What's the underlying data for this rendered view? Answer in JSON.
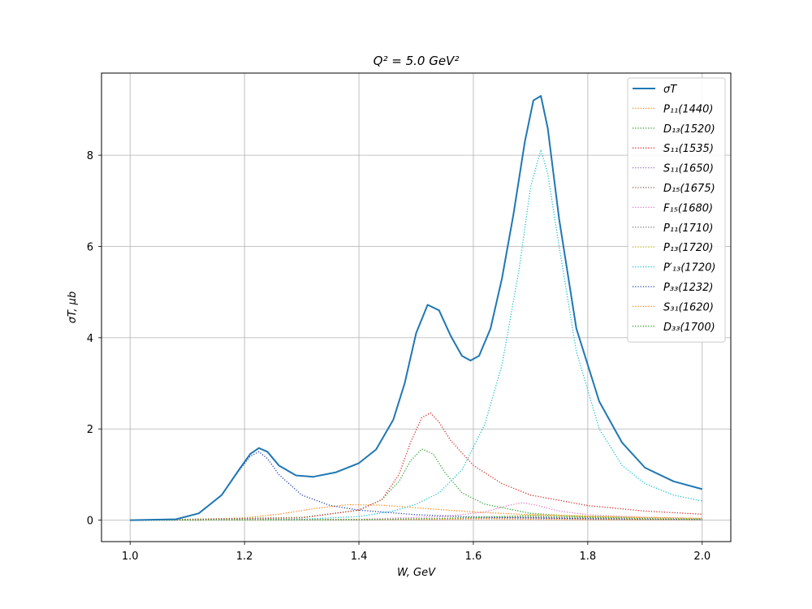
{
  "chart_data": {
    "type": "line",
    "title": "Q² = 5.0 GeV²",
    "xlabel": "W, GeV",
    "ylabel": "σT, μb",
    "xlim": [
      0.95,
      2.05
    ],
    "ylim": [
      -0.47,
      9.8
    ],
    "grid": true,
    "legend_position": "top-right",
    "x_ticks": [
      "1.0",
      "1.2",
      "1.4",
      "1.6",
      "1.8",
      "2.0"
    ],
    "y_ticks": [
      "0",
      "2",
      "4",
      "6",
      "8"
    ],
    "series": [
      {
        "name": "σT",
        "color": "#1f77b4",
        "style": "solid",
        "x": [
          1.0,
          1.08,
          1.12,
          1.16,
          1.19,
          1.21,
          1.225,
          1.24,
          1.26,
          1.29,
          1.32,
          1.36,
          1.4,
          1.43,
          1.46,
          1.48,
          1.5,
          1.52,
          1.54,
          1.56,
          1.58,
          1.595,
          1.61,
          1.63,
          1.65,
          1.67,
          1.69,
          1.705,
          1.718,
          1.73,
          1.75,
          1.78,
          1.82,
          1.86,
          1.9,
          1.95,
          2.0
        ],
        "y": [
          0.0,
          0.02,
          0.15,
          0.55,
          1.1,
          1.45,
          1.58,
          1.5,
          1.2,
          0.98,
          0.95,
          1.05,
          1.25,
          1.55,
          2.2,
          3.0,
          4.1,
          4.72,
          4.6,
          4.05,
          3.6,
          3.5,
          3.6,
          4.2,
          5.3,
          6.7,
          8.3,
          9.2,
          9.3,
          8.6,
          6.6,
          4.2,
          2.6,
          1.7,
          1.15,
          0.85,
          0.68
        ]
      },
      {
        "name": "P₁₁(1440)",
        "color": "#ff7f0e",
        "style": "dotted",
        "x": [
          1.0,
          1.1,
          1.2,
          1.26,
          1.32,
          1.38,
          1.44,
          1.5,
          1.6,
          1.7,
          1.8,
          1.9,
          2.0
        ],
        "y": [
          0.0,
          0.01,
          0.05,
          0.13,
          0.25,
          0.34,
          0.33,
          0.27,
          0.18,
          0.12,
          0.08,
          0.06,
          0.04
        ]
      },
      {
        "name": "D₁₃(1520)",
        "color": "#2ca02c",
        "style": "dotted",
        "x": [
          1.0,
          1.3,
          1.4,
          1.44,
          1.47,
          1.49,
          1.51,
          1.53,
          1.55,
          1.58,
          1.62,
          1.7,
          1.8,
          1.9,
          2.0
        ],
        "y": [
          0.0,
          0.06,
          0.22,
          0.45,
          0.85,
          1.3,
          1.56,
          1.45,
          1.05,
          0.6,
          0.35,
          0.15,
          0.07,
          0.04,
          0.02
        ]
      },
      {
        "name": "S₁₁(1535)",
        "color": "#d62728",
        "style": "dotted",
        "x": [
          1.0,
          1.3,
          1.4,
          1.44,
          1.47,
          1.49,
          1.51,
          1.525,
          1.54,
          1.56,
          1.6,
          1.65,
          1.7,
          1.8,
          1.9,
          2.0
        ],
        "y": [
          0.0,
          0.05,
          0.22,
          0.45,
          1.0,
          1.7,
          2.25,
          2.35,
          2.15,
          1.75,
          1.2,
          0.8,
          0.55,
          0.32,
          0.2,
          0.13
        ]
      },
      {
        "name": "S₁₁(1650)",
        "color": "#9467bd",
        "style": "dotted",
        "x": [
          1.0,
          1.4,
          1.55,
          1.65,
          1.75,
          1.85,
          2.0
        ],
        "y": [
          0.0,
          0.01,
          0.03,
          0.05,
          0.04,
          0.02,
          0.01
        ]
      },
      {
        "name": "D₁₅(1675)",
        "color": "#8c564b",
        "style": "dotted",
        "x": [
          1.0,
          1.4,
          1.55,
          1.65,
          1.68,
          1.75,
          1.85,
          2.0
        ],
        "y": [
          0.0,
          0.01,
          0.02,
          0.05,
          0.06,
          0.04,
          0.02,
          0.01
        ]
      },
      {
        "name": "F₁₅(1680)",
        "color": "#e377c2",
        "style": "dotted",
        "x": [
          1.0,
          1.4,
          1.55,
          1.62,
          1.66,
          1.685,
          1.71,
          1.75,
          1.8,
          1.9,
          2.0
        ],
        "y": [
          0.0,
          0.02,
          0.08,
          0.18,
          0.32,
          0.38,
          0.33,
          0.2,
          0.12,
          0.06,
          0.03
        ]
      },
      {
        "name": "P₁₁(1710)",
        "color": "#7f7f7f",
        "style": "dotted",
        "x": [
          1.0,
          1.5,
          1.65,
          1.71,
          1.8,
          1.9,
          2.0
        ],
        "y": [
          0.0,
          0.02,
          0.05,
          0.07,
          0.05,
          0.03,
          0.02
        ]
      },
      {
        "name": "P₁₃(1720)",
        "color": "#bcbd22",
        "style": "dotted",
        "x": [
          1.0,
          1.5,
          1.65,
          1.72,
          1.8,
          1.9,
          2.0
        ],
        "y": [
          0.0,
          0.02,
          0.08,
          0.12,
          0.09,
          0.05,
          0.03
        ]
      },
      {
        "name": "P′₁₃(1720)",
        "color": "#17becf",
        "style": "dotted",
        "x": [
          1.0,
          1.3,
          1.4,
          1.46,
          1.5,
          1.54,
          1.58,
          1.62,
          1.65,
          1.68,
          1.7,
          1.718,
          1.73,
          1.75,
          1.78,
          1.82,
          1.86,
          1.9,
          1.95,
          2.0
        ],
        "y": [
          0.0,
          0.02,
          0.08,
          0.2,
          0.35,
          0.6,
          1.1,
          2.1,
          3.4,
          5.5,
          7.3,
          8.12,
          7.6,
          6.0,
          3.7,
          2.0,
          1.2,
          0.8,
          0.55,
          0.42
        ]
      },
      {
        "name": "P₃₃(1232)",
        "color": "#1f3fa8",
        "style": "dotted",
        "x": [
          1.0,
          1.08,
          1.12,
          1.16,
          1.19,
          1.21,
          1.225,
          1.24,
          1.26,
          1.3,
          1.35,
          1.4,
          1.5,
          1.6,
          1.7,
          1.8,
          1.9,
          2.0
        ],
        "y": [
          0.0,
          0.02,
          0.15,
          0.55,
          1.08,
          1.4,
          1.5,
          1.35,
          1.0,
          0.55,
          0.32,
          0.22,
          0.12,
          0.07,
          0.05,
          0.03,
          0.02,
          0.01
        ]
      },
      {
        "name": "S₃₁(1620)",
        "color": "#ff7f0e",
        "style": "dotted",
        "x": [
          1.0,
          1.4,
          1.55,
          1.62,
          1.7,
          1.8,
          2.0
        ],
        "y": [
          0.0,
          0.01,
          0.02,
          0.03,
          0.02,
          0.01,
          0.01
        ]
      },
      {
        "name": "D₃₃(1700)",
        "color": "#2ca02c",
        "style": "dotted",
        "x": [
          1.0,
          1.4,
          1.55,
          1.65,
          1.7,
          1.8,
          1.9,
          2.0
        ],
        "y": [
          0.0,
          0.01,
          0.04,
          0.08,
          0.09,
          0.06,
          0.03,
          0.02
        ]
      }
    ]
  }
}
